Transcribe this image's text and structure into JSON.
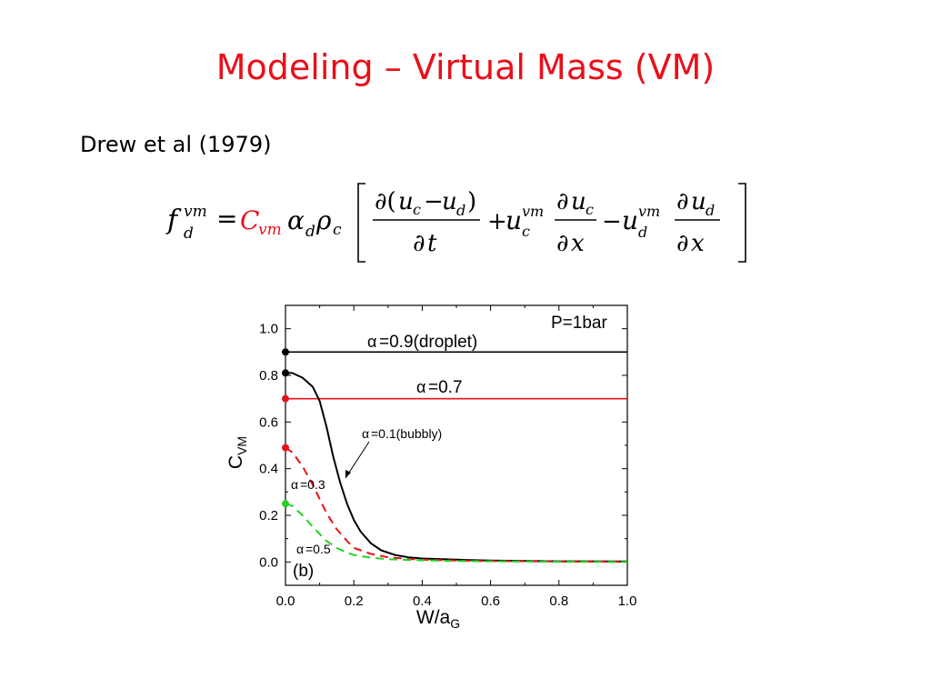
{
  "slide": {
    "title": "Modeling – Virtual Mass (VM)",
    "reference": "Drew et al (1979)"
  },
  "equation": {
    "description_text": "f_d^vm = C_vm α_d ρ_c [ ∂(u_c − u_d)/∂t + u_c^vm ∂u_c/∂x − u_d^vm ∂u_d/∂x ]",
    "highlight_color": "#e8101a"
  },
  "chart_data": {
    "type": "line",
    "panel_label": "(b)",
    "annotation_pressure": "P=1bar",
    "xlabel": "W/a",
    "xlabel_sub": "G",
    "ylabel": "C",
    "ylabel_sub": "VM",
    "xlim": [
      0.0,
      1.0
    ],
    "ylim": [
      -0.1,
      1.1
    ],
    "x_ticks": [
      "0.0",
      "0.2",
      "0.4",
      "0.6",
      "0.8",
      "1.0"
    ],
    "y_ticks": [
      "0.0",
      "0.2",
      "0.4",
      "0.6",
      "0.8",
      "1.0"
    ],
    "series": [
      {
        "name": "α=0.9(droplet)",
        "color": "#000000",
        "dash": "solid",
        "x": [
          0.0,
          1.0
        ],
        "y": [
          0.9,
          0.9
        ]
      },
      {
        "name": "α=0.7",
        "color": "#e8101a",
        "dash": "solid",
        "x": [
          0.0,
          1.0
        ],
        "y": [
          0.7,
          0.7
        ]
      },
      {
        "name": "α=0.1(bubbly)",
        "color": "#000000",
        "dash": "solid",
        "x": [
          0.0,
          0.02,
          0.05,
          0.08,
          0.1,
          0.12,
          0.14,
          0.16,
          0.18,
          0.2,
          0.22,
          0.25,
          0.28,
          0.32,
          0.36,
          0.4,
          0.5,
          0.6,
          0.8,
          1.0
        ],
        "y": [
          0.81,
          0.81,
          0.79,
          0.75,
          0.69,
          0.58,
          0.45,
          0.34,
          0.25,
          0.18,
          0.13,
          0.08,
          0.05,
          0.03,
          0.02,
          0.015,
          0.01,
          0.006,
          0.003,
          0.002
        ]
      },
      {
        "name": "α=0.3",
        "color": "#e8101a",
        "dash": "dashed",
        "x": [
          0.0,
          0.02,
          0.05,
          0.08,
          0.1,
          0.12,
          0.15,
          0.18,
          0.2,
          0.25,
          0.3,
          0.35,
          0.4,
          0.5,
          0.6,
          0.8,
          1.0
        ],
        "y": [
          0.49,
          0.47,
          0.41,
          0.33,
          0.27,
          0.21,
          0.14,
          0.09,
          0.06,
          0.035,
          0.02,
          0.014,
          0.01,
          0.006,
          0.004,
          0.002,
          0.001
        ]
      },
      {
        "name": "α=0.5",
        "color": "#22d322",
        "dash": "dashed",
        "x": [
          0.0,
          0.02,
          0.05,
          0.08,
          0.1,
          0.12,
          0.15,
          0.18,
          0.2,
          0.25,
          0.3,
          0.4,
          0.5,
          0.6,
          0.8,
          1.0
        ],
        "y": [
          0.25,
          0.24,
          0.2,
          0.15,
          0.12,
          0.09,
          0.06,
          0.04,
          0.03,
          0.018,
          0.012,
          0.007,
          0.004,
          0.003,
          0.001,
          0.0
        ]
      }
    ],
    "series_start_markers": [
      {
        "x": 0.0,
        "y": 0.9,
        "color": "#000000"
      },
      {
        "x": 0.0,
        "y": 0.81,
        "color": "#000000"
      },
      {
        "x": 0.0,
        "y": 0.7,
        "color": "#e8101a"
      },
      {
        "x": 0.0,
        "y": 0.49,
        "color": "#e8101a"
      },
      {
        "x": 0.0,
        "y": 0.25,
        "color": "#22d322"
      }
    ],
    "annotations": {
      "droplet": "=0.9(droplet)",
      "a07": "=0.7",
      "bubbly": "=0.1(bubbly)",
      "a03": "=0.3",
      "a05": "=0.5",
      "alpha_symbol": "α"
    }
  }
}
